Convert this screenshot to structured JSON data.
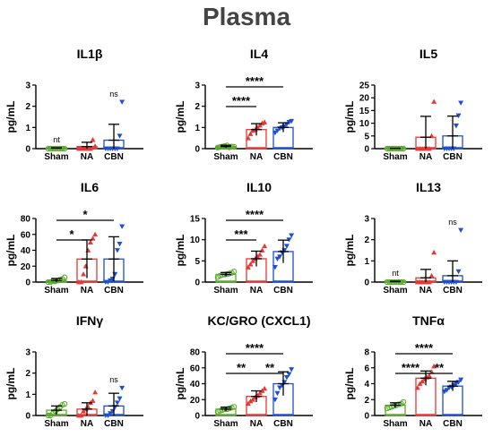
{
  "figure_title": "Plasma",
  "colors": {
    "Sham": "#5aaa2b",
    "NA": "#e53935",
    "CBN": "#1e4fd1",
    "axis": "#000000",
    "title": "#444444"
  },
  "chart_data": [
    {
      "type": "bar",
      "title": "IL1β",
      "ylabel": "pg/mL",
      "ylim": [
        0,
        3
      ],
      "yticks": [
        0,
        1,
        2,
        3
      ],
      "categories": [
        "Sham",
        "NA",
        "CBN"
      ],
      "series": [
        {
          "name": "Sham",
          "mean": 0.02,
          "sd": 0.02,
          "points": [
            0,
            0,
            0,
            0,
            0,
            0,
            0,
            0
          ]
        },
        {
          "name": "NA",
          "mean": 0.1,
          "sd": 0.2,
          "points": [
            0,
            0,
            0,
            0,
            0,
            0,
            0.42,
            0.12
          ]
        },
        {
          "name": "CBN",
          "mean": 0.4,
          "sd": 0.75,
          "points": [
            0,
            0,
            0,
            0,
            0,
            0,
            0.6,
            2.2
          ]
        }
      ],
      "annotations": [
        {
          "text": "nt",
          "category": "Sham"
        },
        {
          "text": "ns",
          "category": "CBN"
        }
      ],
      "significance": []
    },
    {
      "type": "bar",
      "title": "IL4",
      "ylabel": "pg/mL",
      "ylim": [
        0,
        3
      ],
      "yticks": [
        0,
        1,
        2,
        3
      ],
      "categories": [
        "Sham",
        "NA",
        "CBN"
      ],
      "series": [
        {
          "name": "Sham",
          "mean": 0.1,
          "sd": 0.06,
          "points": [
            0.05,
            0.08,
            0.1,
            0.12,
            0.15,
            0.06,
            0.1,
            0.09
          ]
        },
        {
          "name": "NA",
          "mean": 0.9,
          "sd": 0.28,
          "points": [
            0.5,
            0.7,
            0.85,
            0.9,
            1.0,
            1.1,
            1.2,
            1.25
          ]
        },
        {
          "name": "CBN",
          "mean": 1.0,
          "sd": 0.22,
          "points": [
            0.75,
            0.85,
            0.95,
            1.0,
            1.05,
            1.15,
            1.25,
            1.3
          ]
        }
      ],
      "annotations": [],
      "significance": [
        {
          "from": "Sham",
          "to": "NA",
          "label": "****",
          "level": 0
        },
        {
          "from": "Sham",
          "to": "CBN",
          "label": "****",
          "level": 1
        }
      ]
    },
    {
      "type": "bar",
      "title": "IL5",
      "ylabel": "pg/mL",
      "ylim": [
        0,
        25
      ],
      "yticks": [
        0,
        5,
        10,
        15,
        20,
        25
      ],
      "categories": [
        "Sham",
        "NA",
        "CBN"
      ],
      "series": [
        {
          "name": "Sham",
          "mean": 0.1,
          "sd": 0.05,
          "points": [
            0,
            0,
            0,
            0,
            0,
            0,
            0,
            0
          ]
        },
        {
          "name": "NA",
          "mean": 4.5,
          "sd": 8.2,
          "points": [
            0,
            0,
            0,
            0,
            0,
            0,
            5,
            18.5
          ]
        },
        {
          "name": "CBN",
          "mean": 5,
          "sd": 7.8,
          "points": [
            0,
            0,
            0,
            0,
            0,
            9,
            13,
            18
          ]
        }
      ],
      "annotations": [],
      "significance": []
    },
    {
      "type": "bar",
      "title": "IL6",
      "ylabel": "pg/mL",
      "ylim": [
        0,
        80
      ],
      "yticks": [
        0,
        20,
        40,
        60,
        80
      ],
      "categories": [
        "Sham",
        "NA",
        "CBN"
      ],
      "series": [
        {
          "name": "Sham",
          "mean": 2,
          "sd": 2.5,
          "points": [
            0,
            0,
            1,
            1,
            2,
            3,
            4,
            6
          ]
        },
        {
          "name": "NA",
          "mean": 29,
          "sd": 24,
          "points": [
            0,
            0,
            10,
            20,
            40,
            50,
            55,
            60
          ]
        },
        {
          "name": "CBN",
          "mean": 29,
          "sd": 28,
          "points": [
            0,
            0,
            2,
            4,
            10,
            40,
            48,
            70
          ]
        }
      ],
      "annotations": [],
      "significance": [
        {
          "from": "Sham",
          "to": "NA",
          "label": "*",
          "level": 0
        },
        {
          "from": "Sham",
          "to": "CBN",
          "label": "*",
          "level": 1
        }
      ]
    },
    {
      "type": "bar",
      "title": "IL10",
      "ylabel": "pg/mL",
      "ylim": [
        0,
        15
      ],
      "yticks": [
        0,
        5,
        10,
        15
      ],
      "categories": [
        "Sham",
        "NA",
        "CBN"
      ],
      "series": [
        {
          "name": "Sham",
          "mean": 1.8,
          "sd": 0.45,
          "points": [
            1.2,
            1.5,
            1.7,
            1.8,
            1.9,
            2.0,
            2.2,
            2.5
          ]
        },
        {
          "name": "NA",
          "mean": 5.5,
          "sd": 1.8,
          "points": [
            3.5,
            4.2,
            5.0,
            5.5,
            6.0,
            6.5,
            7.5,
            8.5
          ]
        },
        {
          "name": "CBN",
          "mean": 7.2,
          "sd": 2.7,
          "points": [
            3.5,
            5.5,
            6.0,
            7.0,
            7.5,
            8.5,
            10,
            11
          ]
        }
      ],
      "annotations": [],
      "significance": [
        {
          "from": "Sham",
          "to": "NA",
          "label": "***",
          "level": 0
        },
        {
          "from": "Sham",
          "to": "CBN",
          "label": "****",
          "level": 1
        }
      ]
    },
    {
      "type": "bar",
      "title": "IL13",
      "ylabel": "pg/mL",
      "ylim": [
        0,
        3
      ],
      "yticks": [
        0,
        1,
        2,
        3
      ],
      "categories": [
        "Sham",
        "NA",
        "CBN"
      ],
      "series": [
        {
          "name": "Sham",
          "mean": 0.02,
          "sd": 0.02,
          "points": [
            0,
            0,
            0,
            0,
            0,
            0,
            0,
            0
          ]
        },
        {
          "name": "NA",
          "mean": 0.2,
          "sd": 0.4,
          "points": [
            0,
            0,
            0,
            0,
            0,
            0,
            0.3,
            1.4
          ]
        },
        {
          "name": "CBN",
          "mean": 0.3,
          "sd": 0.7,
          "points": [
            0,
            0,
            0,
            0,
            0,
            0,
            0.5,
            2.45
          ]
        }
      ],
      "annotations": [
        {
          "text": "nt",
          "category": "Sham"
        },
        {
          "text": "ns",
          "category": "CBN"
        }
      ],
      "significance": []
    },
    {
      "type": "bar",
      "title": "IFNγ",
      "ylabel": "pg/mL",
      "ylim": [
        0,
        3
      ],
      "yticks": [
        0,
        1,
        2,
        3
      ],
      "categories": [
        "Sham",
        "NA",
        "CBN"
      ],
      "series": [
        {
          "name": "Sham",
          "mean": 0.25,
          "sd": 0.2,
          "points": [
            0,
            0,
            0.1,
            0.2,
            0.3,
            0.4,
            0.5,
            0.55
          ]
        },
        {
          "name": "NA",
          "mean": 0.3,
          "sd": 0.3,
          "points": [
            0,
            0,
            0.2,
            0.3,
            0.4,
            0.6,
            0.7,
            1.1
          ]
        },
        {
          "name": "CBN",
          "mean": 0.45,
          "sd": 0.6,
          "points": [
            0,
            0,
            0.1,
            0.2,
            0.4,
            0.6,
            0.8,
            1.3
          ]
        }
      ],
      "annotations": [
        {
          "text": "ns",
          "category": "CBN"
        }
      ],
      "significance": []
    },
    {
      "type": "bar",
      "title": "KC/GRO (CXCL1)",
      "ylabel": "pg/mL",
      "ylim": [
        0,
        80
      ],
      "yticks": [
        0,
        20,
        40,
        60,
        80
      ],
      "categories": [
        "Sham",
        "NA",
        "CBN"
      ],
      "series": [
        {
          "name": "Sham",
          "mean": 8,
          "sd": 2.5,
          "points": [
            5,
            6,
            7,
            8,
            8,
            9,
            10,
            11
          ]
        },
        {
          "name": "NA",
          "mean": 24,
          "sd": 7,
          "points": [
            15,
            18,
            20,
            23,
            25,
            28,
            31,
            34
          ]
        },
        {
          "name": "CBN",
          "mean": 40,
          "sd": 15,
          "points": [
            20,
            28,
            35,
            38,
            42,
            48,
            52,
            58
          ]
        }
      ],
      "annotations": [],
      "significance": [
        {
          "from": "Sham",
          "to": "NA",
          "label": "**",
          "level": 0
        },
        {
          "from": "NA",
          "to": "CBN",
          "label": "**",
          "level": 0
        },
        {
          "from": "Sham",
          "to": "CBN",
          "label": "****",
          "level": 1
        }
      ]
    },
    {
      "type": "bar",
      "title": "TNFα",
      "ylabel": "pg/mL",
      "ylim": [
        0,
        8
      ],
      "yticks": [
        0,
        2,
        4,
        6,
        8
      ],
      "categories": [
        "Sham",
        "NA",
        "CBN"
      ],
      "series": [
        {
          "name": "Sham",
          "mean": 1.3,
          "sd": 0.3,
          "points": [
            0.9,
            1.0,
            1.1,
            1.2,
            1.3,
            1.4,
            1.5,
            1.7
          ]
        },
        {
          "name": "NA",
          "mean": 4.7,
          "sd": 0.9,
          "points": [
            3.5,
            4.0,
            4.3,
            4.6,
            4.8,
            5.0,
            5.5,
            6.2
          ]
        },
        {
          "name": "CBN",
          "mean": 3.7,
          "sd": 0.6,
          "points": [
            3.0,
            3.2,
            3.5,
            3.6,
            3.8,
            4.0,
            4.2,
            4.5
          ]
        }
      ],
      "annotations": [],
      "significance": [
        {
          "from": "Sham",
          "to": "NA",
          "label": "****",
          "level": 0
        },
        {
          "from": "NA",
          "to": "CBN",
          "label": "**",
          "level": 0
        },
        {
          "from": "Sham",
          "to": "CBN",
          "label": "****",
          "level": 1
        }
      ]
    }
  ]
}
